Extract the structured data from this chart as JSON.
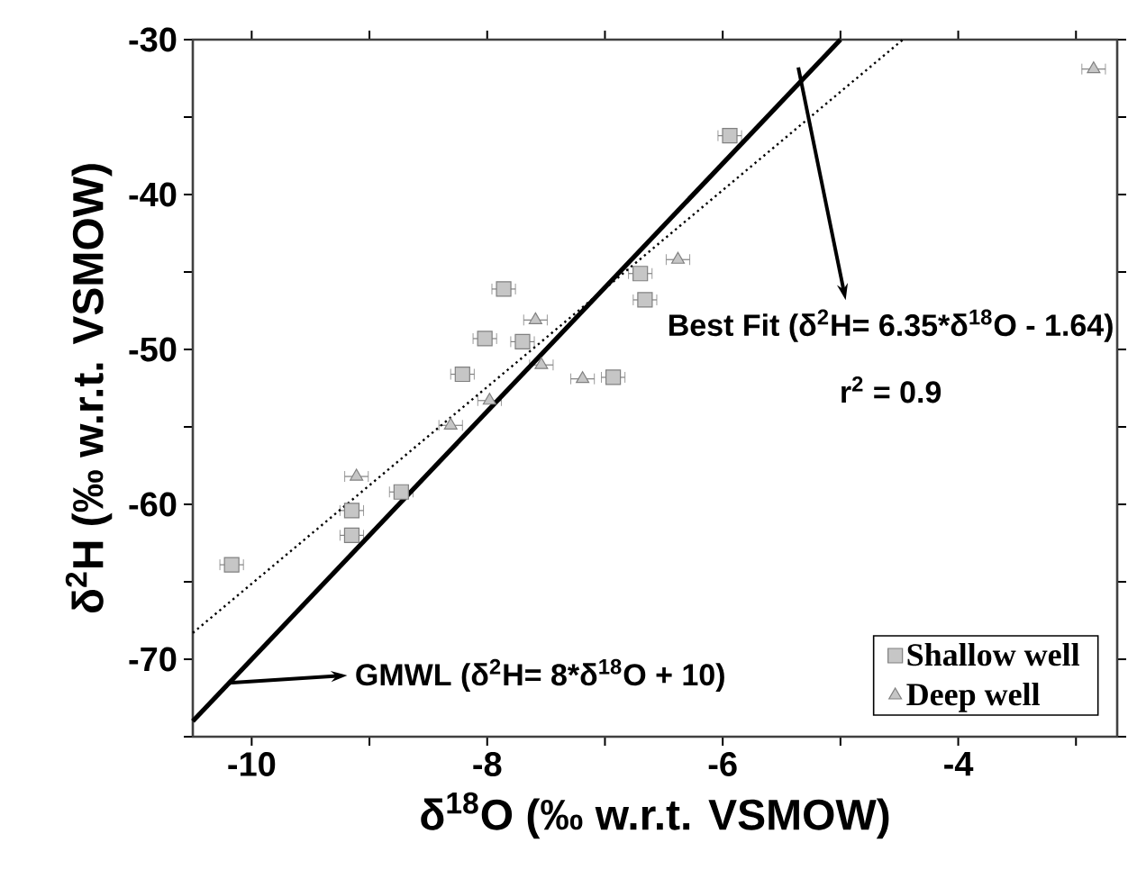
{
  "chart_data": {
    "type": "scatter",
    "xlabel": "δ$^{18}$O (‰ w.r.t. VSMOW)",
    "ylabel": "δ$^{2}$H (‰ w.r.t. VSMOW)",
    "xlim": [
      -10.5,
      -2.65
    ],
    "ylim": [
      -75,
      -30
    ],
    "xticks": [
      -10,
      {
        "value": -9,
        "label": null
      },
      -8,
      {
        "value": -7,
        "label": null
      },
      -6,
      {
        "value": -5,
        "label": null
      },
      -4,
      {
        "value": -3,
        "label": null
      }
    ],
    "yticks": [
      {
        "value": -75,
        "label": null
      },
      -70,
      {
        "value": -65,
        "label": null
      },
      -60,
      {
        "value": -55,
        "label": null
      },
      -50,
      {
        "value": -45,
        "label": null
      },
      -40,
      {
        "value": -35,
        "label": null
      },
      -30
    ],
    "grid": false,
    "legend": "bottom right",
    "series": [
      {
        "name": "Shallow well",
        "marker": "square",
        "color": "#808080",
        "x": [
          -10.17,
          -9.15,
          -9.15,
          -8.73,
          -8.21,
          -8.02,
          -7.86,
          -7.7,
          -6.93,
          -6.7,
          -6.66,
          -5.94
        ],
        "values": [
          -63.9,
          -60.4,
          -62.0,
          -59.2,
          -51.6,
          -49.3,
          -46.1,
          -49.5,
          -51.8,
          -45.1,
          -46.8,
          -36.2
        ],
        "xerrors": [
          0.1,
          0.1,
          0.1,
          0.1,
          0.1,
          0.1,
          0.1,
          0.1,
          0.1,
          0.1,
          0.1,
          0.1
        ]
      },
      {
        "name": "Deep well",
        "marker": "triangle",
        "color": "#808080",
        "x": [
          -9.11,
          -8.31,
          -7.98,
          -7.59,
          -7.54,
          -7.19,
          -6.38,
          -2.85
        ],
        "values": [
          -58.2,
          -54.9,
          -53.3,
          -48.1,
          -51.0,
          -51.9,
          -44.2,
          -31.9
        ],
        "xerrors": [
          0.1,
          0.1,
          0.1,
          0.1,
          0.1,
          0.1,
          0.1,
          0.1
        ]
      },
      {
        "type": "line",
        "marker": "none",
        "line_style": "solid",
        "color": "#000000",
        "x": [
          -10.5,
          -5.0
        ],
        "values": [
          -74.0,
          -30.0
        ]
      },
      {
        "type": "line",
        "marker": "none",
        "line_style": "dotted",
        "color": "#000000",
        "x": [
          -10.5,
          -4.47
        ],
        "values": [
          -68.3,
          -30.0
        ]
      }
    ],
    "annotations": [
      "GMWL (δ$^{2}$H= 8*δ$^{18}$O + 10)",
      "Best Fit (δ$^{2}$H= 6.35*δ$^{18}$O - 1.64)",
      "r$^{2}$ = 0.9"
    ]
  }
}
